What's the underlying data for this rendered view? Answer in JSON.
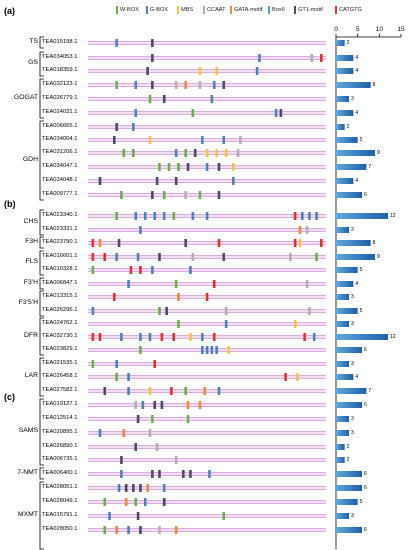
{
  "panel_labels": [
    "(a)",
    "(b)",
    "(c)"
  ],
  "axis_ticks": [
    "0",
    "5",
    "10",
    "15"
  ],
  "legend": [
    {
      "name": "W-BOX",
      "color": "#6ab04c"
    },
    {
      "name": "G-BOX",
      "color": "#4f81bd"
    },
    {
      "name": "MBS",
      "color": "#f5c243"
    },
    {
      "name": "CCAAT",
      "color": "#b0b0b0"
    },
    {
      "name": "GATA-motif",
      "color": "#f0883e"
    },
    {
      "name": "BoxII",
      "color": "#5aa0d8"
    },
    {
      "name": "GT1-motif",
      "color": "#4a4a6a"
    },
    {
      "name": "CATGTG",
      "color": "#e03030"
    }
  ],
  "groups": [
    {
      "name": "TS",
      "rows": [
        0,
        0
      ]
    },
    {
      "name": "GS",
      "rows": [
        1,
        2
      ]
    },
    {
      "name": "GOGAT",
      "rows": [
        3,
        5
      ]
    },
    {
      "name": "GDH",
      "rows": [
        6,
        11
      ]
    },
    {
      "name": "CHS",
      "rows": [
        12,
        13
      ]
    },
    {
      "name": "F3H",
      "rows": [
        14,
        14
      ]
    },
    {
      "name": "FLS",
      "rows": [
        15,
        16
      ]
    },
    {
      "name": "F3'H",
      "rows": [
        17,
        17
      ]
    },
    {
      "name": "F3'5'H",
      "rows": [
        18,
        19
      ]
    },
    {
      "name": "DFR",
      "rows": [
        20,
        22
      ]
    },
    {
      "name": "LAR",
      "rows": [
        23,
        25
      ]
    },
    {
      "name": "SAMS",
      "rows": [
        26,
        30
      ]
    },
    {
      "name": "7-NMT",
      "rows": [
        31,
        31
      ]
    },
    {
      "name": "MXMT",
      "rows": [
        32,
        36
      ]
    }
  ],
  "genes": [
    {
      "id": "TEA015198.1",
      "count": 2,
      "panel": 0,
      "motifs": [
        [
          "G-BOX",
          0.12
        ],
        [
          "GT1-motif",
          0.27
        ]
      ]
    },
    {
      "id": "TEA034053.1",
      "count": 4,
      "panel": 0,
      "motifs": [
        [
          "GT1-motif",
          0.27
        ],
        [
          "G-BOX",
          0.72
        ],
        [
          "CCAAT",
          0.94
        ],
        [
          "CATGTG",
          0.98
        ]
      ]
    },
    {
      "id": "TEA018359.1",
      "count": 4,
      "panel": 0,
      "motifs": [
        [
          "GT1-motif",
          0.25
        ],
        [
          "MBS",
          0.47
        ],
        [
          "MBS",
          0.54
        ],
        [
          "G-BOX",
          0.71
        ]
      ]
    },
    {
      "id": "TEA032123.1",
      "count": 8,
      "panel": 0,
      "motifs": [
        [
          "W-BOX",
          0.12
        ],
        [
          "G-BOX",
          0.2
        ],
        [
          "GT1-motif",
          0.27
        ],
        [
          "CCAAT",
          0.37
        ],
        [
          "GATA-motif",
          0.41
        ],
        [
          "CCAAT",
          0.47
        ],
        [
          "G-BOX",
          0.53
        ],
        [
          "GT1-motif",
          0.57
        ]
      ]
    },
    {
      "id": "TEA026779.1",
      "count": 3,
      "panel": 0,
      "motifs": [
        [
          "W-BOX",
          0.26
        ],
        [
          "GT1-motif",
          0.32
        ],
        [
          "G-BOX",
          0.52
        ]
      ]
    },
    {
      "id": "TEA024031.1",
      "count": 4,
      "panel": 0,
      "motifs": [
        [
          "G-BOX",
          0.2
        ],
        [
          "W-BOX",
          0.44
        ],
        [
          "G-BOX",
          0.79
        ],
        [
          "GT1-motif",
          0.81
        ]
      ]
    },
    {
      "id": "TEA006665.1",
      "count": 2,
      "panel": 0,
      "motifs": [
        [
          "GT1-motif",
          0.12
        ],
        [
          "G-BOX",
          0.19
        ]
      ]
    },
    {
      "id": "TEA034004.1",
      "count": 5,
      "panel": 0,
      "motifs": [
        [
          "GT1-motif",
          0.11
        ],
        [
          "MBS",
          0.26
        ],
        [
          "G-BOX",
          0.48
        ],
        [
          "G-BOX",
          0.57
        ],
        [
          "CCAAT",
          0.64
        ]
      ]
    },
    {
      "id": "TEA031206.1",
      "count": 9,
      "panel": 0,
      "motifs": [
        [
          "W-BOX",
          0.15
        ],
        [
          "W-BOX",
          0.19
        ],
        [
          "G-BOX",
          0.37
        ],
        [
          "W-BOX",
          0.41
        ],
        [
          "GT1-motif",
          0.45
        ],
        [
          "MBS",
          0.5
        ],
        [
          "MBS",
          0.54
        ],
        [
          "MBS",
          0.58
        ],
        [
          "CCAAT",
          0.63
        ]
      ]
    },
    {
      "id": "TEA034047.1",
      "count": 7,
      "panel": 0,
      "motifs": [
        [
          "W-BOX",
          0.3
        ],
        [
          "W-BOX",
          0.34
        ],
        [
          "W-BOX",
          0.38
        ],
        [
          "GT1-motif",
          0.42
        ],
        [
          "G-BOX",
          0.5
        ],
        [
          "GT1-motif",
          0.55
        ],
        [
          "MBS",
          0.61
        ]
      ]
    },
    {
      "id": "TEA034048.1",
      "count": 4,
      "panel": 0,
      "motifs": [
        [
          "GT1-motif",
          0.05
        ],
        [
          "GT1-motif",
          0.29
        ],
        [
          "GT1-motif",
          0.37
        ],
        [
          "G-BOX",
          0.61
        ]
      ]
    },
    {
      "id": "TEA009777.1",
      "count": 6,
      "panel": 0,
      "motifs": [
        [
          "W-BOX",
          0.14
        ],
        [
          "GT1-motif",
          0.27
        ],
        [
          "W-BOX",
          0.32
        ],
        [
          "CCAAT",
          0.41
        ],
        [
          "W-BOX",
          0.47
        ],
        [
          "GT1-motif",
          0.55
        ]
      ]
    },
    {
      "id": "TEA023340.1",
      "count": 12,
      "panel": 1,
      "motifs": [
        [
          "W-BOX",
          0.12
        ],
        [
          "G-BOX",
          0.2
        ],
        [
          "G-BOX",
          0.24
        ],
        [
          "G-BOX",
          0.28
        ],
        [
          "G-BOX",
          0.32
        ],
        [
          "W-BOX",
          0.36
        ],
        [
          "G-BOX",
          0.44
        ],
        [
          "G-BOX",
          0.5
        ],
        [
          "CATGTG",
          0.87
        ],
        [
          "G-BOX",
          0.9
        ],
        [
          "G-BOX",
          0.93
        ],
        [
          "G-BOX",
          0.96
        ]
      ]
    },
    {
      "id": "TEA023331.1",
      "count": 3,
      "panel": 1,
      "motifs": [
        [
          "G-BOX",
          0.22
        ],
        [
          "GATA-motif",
          0.89
        ],
        [
          "CCAAT",
          0.92
        ]
      ]
    },
    {
      "id": "TEA023790.1",
      "count": 8,
      "panel": 1,
      "motifs": [
        [
          "CATGTG",
          0.02
        ],
        [
          "GATA-motif",
          0.05
        ],
        [
          "GT1-motif",
          0.13
        ],
        [
          "GT1-motif",
          0.41
        ],
        [
          "CATGTG",
          0.55
        ],
        [
          "CATGTG",
          0.87
        ],
        [
          "MBS",
          0.89
        ],
        [
          "CATGTG",
          0.98
        ]
      ]
    },
    {
      "id": "TEA016601.1",
      "count": 9,
      "panel": 1,
      "motifs": [
        [
          "CATGTG",
          0.02
        ],
        [
          "CATGTG",
          0.07
        ],
        [
          "G-BOX",
          0.12
        ],
        [
          "G-BOX",
          0.21
        ],
        [
          "GT1-motif",
          0.3
        ],
        [
          "CCAAT",
          0.44
        ],
        [
          "GT1-motif",
          0.57
        ],
        [
          "CCAAT",
          0.85
        ],
        [
          "W-BOX",
          0.96
        ]
      ]
    },
    {
      "id": "TEA010328.1",
      "count": 5,
      "panel": 1,
      "motifs": [
        [
          "W-BOX",
          0.02
        ],
        [
          "CATGTG",
          0.18
        ],
        [
          "CATGTG",
          0.22
        ],
        [
          "G-BOX",
          0.27
        ],
        [
          "G-BOX",
          0.43
        ]
      ]
    },
    {
      "id": "TEA006847.1",
      "count": 4,
      "panel": 1,
      "motifs": [
        [
          "G-BOX",
          0.17
        ],
        [
          "W-BOX",
          0.37
        ],
        [
          "CATGTG",
          0.53
        ],
        [
          "CCAAT",
          0.92
        ]
      ]
    },
    {
      "id": "TEA013315.1",
      "count": 3,
      "panel": 1,
      "motifs": [
        [
          "CATGTG",
          0.11
        ],
        [
          "GATA-motif",
          0.38
        ],
        [
          "CATGTG",
          0.5
        ]
      ]
    },
    {
      "id": "TEA026296.1",
      "count": 5,
      "panel": 1,
      "motifs": [
        [
          "G-BOX",
          0.02
        ],
        [
          "W-BOX",
          0.3
        ],
        [
          "GT1-motif",
          0.33
        ],
        [
          "CCAAT",
          0.58
        ],
        [
          "CCAAT",
          0.93
        ]
      ]
    },
    {
      "id": "TEA024762.1",
      "count": 3,
      "panel": 1,
      "motifs": [
        [
          "W-BOX",
          0.38
        ],
        [
          "G-BOX",
          0.58
        ],
        [
          "MBS",
          0.87
        ]
      ]
    },
    {
      "id": "TEA032730.1",
      "count": 12,
      "panel": 1,
      "motifs": [
        [
          "CATGTG",
          0.02
        ],
        [
          "CATGTG",
          0.05
        ],
        [
          "G-BOX",
          0.14
        ],
        [
          "G-BOX",
          0.22
        ],
        [
          "G-BOX",
          0.26
        ],
        [
          "CATGTG",
          0.31
        ],
        [
          "CATGTG",
          0.36
        ],
        [
          "MBS",
          0.43
        ],
        [
          "G-BOX",
          0.48
        ],
        [
          "CATGTG",
          0.53
        ],
        [
          "CATGTG",
          0.91
        ],
        [
          "G-BOX",
          0.95
        ]
      ]
    },
    {
      "id": "TEA023829.1",
      "count": 6,
      "panel": 1,
      "motifs": [
        [
          "W-BOX",
          0.22
        ],
        [
          "G-BOX",
          0.48
        ],
        [
          "G-BOX",
          0.5
        ],
        [
          "G-BOX",
          0.52
        ],
        [
          "G-BOX",
          0.54
        ],
        [
          "MBS",
          0.59
        ]
      ]
    },
    {
      "id": "TEA021535.1",
      "count": 3,
      "panel": 1,
      "motifs": [
        [
          "W-BOX",
          0.02
        ],
        [
          "G-BOX",
          0.12
        ],
        [
          "CATGTG",
          0.28
        ]
      ]
    },
    {
      "id": "TEA026458.1",
      "count": 4,
      "panel": 1,
      "motifs": [
        [
          "W-BOX",
          0.12
        ],
        [
          "G-BOX",
          0.17
        ],
        [
          "CATGTG",
          0.83
        ],
        [
          "MBS",
          0.88
        ]
      ]
    },
    {
      "id": "TEA027582.1",
      "count": 7,
      "panel": 1,
      "motifs": [
        [
          "GT1-motif",
          0.07
        ],
        [
          "G-BOX",
          0.17
        ],
        [
          "MBS",
          0.26
        ],
        [
          "CATGTG",
          0.35
        ],
        [
          "W-BOX",
          0.41
        ],
        [
          "GATA-motif",
          0.49
        ],
        [
          "G-BOX",
          0.55
        ]
      ]
    },
    {
      "id": "TEA019127.1",
      "count": 6,
      "panel": 2,
      "motifs": [
        [
          "CCAAT",
          0.2
        ],
        [
          "G-BOX",
          0.23
        ],
        [
          "GT1-motif",
          0.28
        ],
        [
          "GT1-motif",
          0.31
        ],
        [
          "GATA-motif",
          0.42
        ],
        [
          "GATA-motif",
          0.47
        ]
      ]
    },
    {
      "id": "TEA012514.1",
      "count": 3,
      "panel": 2,
      "motifs": [
        [
          "GT1-motif",
          0.21
        ],
        [
          "W-BOX",
          0.27
        ],
        [
          "W-BOX",
          0.42
        ]
      ]
    },
    {
      "id": "TEA020895.1",
      "count": 3,
      "panel": 2,
      "motifs": [
        [
          "G-BOX",
          0.05
        ],
        [
          "GATA-motif",
          0.15
        ],
        [
          "CCAAT",
          0.26
        ]
      ]
    },
    {
      "id": "TEA026890.1",
      "count": 2,
      "panel": 2,
      "motifs": [
        [
          "GT1-motif",
          0.2
        ],
        [
          "CCAAT",
          0.29
        ]
      ]
    },
    {
      "id": "TEA006735.1",
      "count": 2,
      "panel": 2,
      "motifs": [
        [
          "GT1-motif",
          0.14
        ],
        [
          "CCAAT",
          0.37
        ]
      ]
    },
    {
      "id": "TEA006400.1",
      "count": 6,
      "panel": 2,
      "motifs": [
        [
          "G-BOX",
          0.14
        ],
        [
          "GT1-motif",
          0.27
        ],
        [
          "GT1-motif",
          0.3
        ],
        [
          "GT1-motif",
          0.4
        ],
        [
          "GT1-motif",
          0.43
        ],
        [
          "G-BOX",
          0.51
        ]
      ]
    },
    {
      "id": "TEA028051.1",
      "count": 6,
      "panel": 2,
      "motifs": [
        [
          "G-BOX",
          0.13
        ],
        [
          "GT1-motif",
          0.16
        ],
        [
          "GT1-motif",
          0.19
        ],
        [
          "GT1-motif",
          0.22
        ],
        [
          "GATA-motif",
          0.25
        ],
        [
          "G-BOX",
          0.32
        ]
      ]
    },
    {
      "id": "TEA028049.1",
      "count": 5,
      "panel": 2,
      "motifs": [
        [
          "W-BOX",
          0.07
        ],
        [
          "GATA-motif",
          0.16
        ],
        [
          "W-BOX",
          0.2
        ],
        [
          "G-BOX",
          0.24
        ],
        [
          "GT1-motif",
          0.32
        ]
      ]
    },
    {
      "id": "TEA015791.1",
      "count": 3,
      "panel": 2,
      "motifs": [
        [
          "G-BOX",
          0.09
        ],
        [
          "GT1-motif",
          0.21
        ],
        [
          "W-BOX",
          0.57
        ]
      ]
    },
    {
      "id": "TEA028050.1",
      "count": 6,
      "panel": 2,
      "motifs": [
        [
          "W-BOX",
          0.07
        ],
        [
          "GATA-motif",
          0.12
        ],
        [
          "G-BOX",
          0.17
        ],
        [
          "GT1-motif",
          0.22
        ],
        [
          "CCAAT",
          0.3
        ],
        [
          "GATA-motif",
          0.37
        ]
      ]
    }
  ]
}
